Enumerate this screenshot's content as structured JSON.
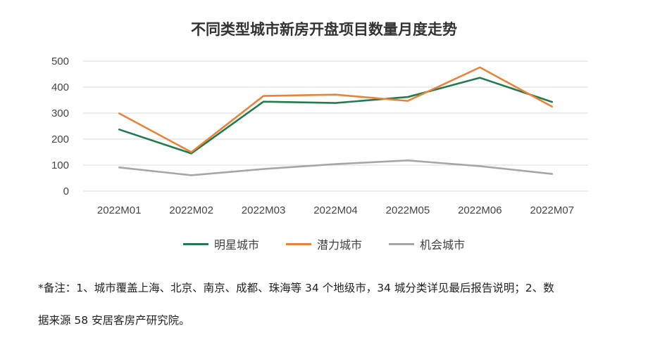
{
  "chart_data": {
    "type": "line",
    "title": "不同类型城市新房开盘项目数量月度走势",
    "categories": [
      "2022M01",
      "2022M02",
      "2022M03",
      "2022M04",
      "2022M05",
      "2022M06",
      "2022M07"
    ],
    "ylim": [
      0,
      500
    ],
    "yticks": [
      0,
      100,
      200,
      300,
      400,
      500
    ],
    "grid": true,
    "legend_position": "bottom",
    "series": [
      {
        "name": "明星城市",
        "color": "#237A4F",
        "values": [
          237,
          145,
          344,
          339,
          362,
          436,
          343
        ]
      },
      {
        "name": "潜力城市",
        "color": "#E8843A",
        "values": [
          299,
          150,
          366,
          371,
          347,
          476,
          325
        ]
      },
      {
        "name": "机会城市",
        "color": "#A6A6A6",
        "values": [
          91,
          61,
          85,
          104,
          118,
          96,
          66
        ]
      }
    ]
  },
  "notes": {
    "line1": "*备注：1、城市覆盖上海、北京、南京、成都、珠海等 34 个地级市，34 城分类详见最后报告说明；2、数",
    "line2": "据来源 58 安居客房产研究院。"
  }
}
